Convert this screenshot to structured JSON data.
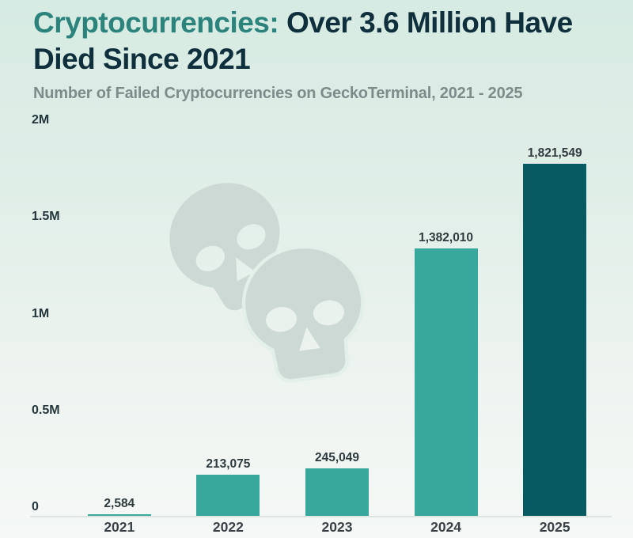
{
  "header": {
    "title_highlight": "Cryptocurrencies:",
    "title_rest": " Over 3.6 Million Have Died Since 2021",
    "subtitle": "Number of Failed Cryptocurrencies on GeckoTerminal, 2021 - 2025"
  },
  "chart_data": {
    "type": "bar",
    "title": "Cryptocurrencies: Over 3.6 Million Have Died Since 2021",
    "subtitle": "Number of Failed Cryptocurrencies on GeckoTerminal, 2021 - 2025",
    "categories": [
      "2021",
      "2022",
      "2023",
      "2024",
      "2025"
    ],
    "values": [
      2584,
      213075,
      245049,
      1382010,
      1821549
    ],
    "value_labels": [
      "2,584",
      "213,075",
      "245,049",
      "1,382,010",
      "1,821,549"
    ],
    "bar_colors": [
      "#38a89d",
      "#38a89d",
      "#38a89d",
      "#38a89d",
      "#065a62"
    ],
    "xlabel": "",
    "ylabel": "",
    "ylim": [
      0,
      2000000
    ],
    "yticks": [
      {
        "label": "0",
        "value": 0
      },
      {
        "label": "0.5M",
        "value": 500000
      },
      {
        "label": "1M",
        "value": 1000000
      },
      {
        "label": "1.5M",
        "value": 1500000
      },
      {
        "label": "2M",
        "value": 2000000
      }
    ],
    "grid": false,
    "legend": null
  },
  "colors": {
    "title_highlight": "#2b837b",
    "title_dark": "#0f2f3d",
    "subtitle_gray": "#7d8b8a",
    "bar_teal": "#38a89d",
    "bar_dark_teal": "#065a62",
    "watermark_skull": "#cdd9d4",
    "watermark_halo": "#e3efe9",
    "baseline": "#dce5e1",
    "background_top": "#d6ebe3",
    "background_bottom": "#f5f8f6"
  },
  "watermark": {
    "icons": [
      "skull-icon",
      "skull-icon"
    ]
  }
}
